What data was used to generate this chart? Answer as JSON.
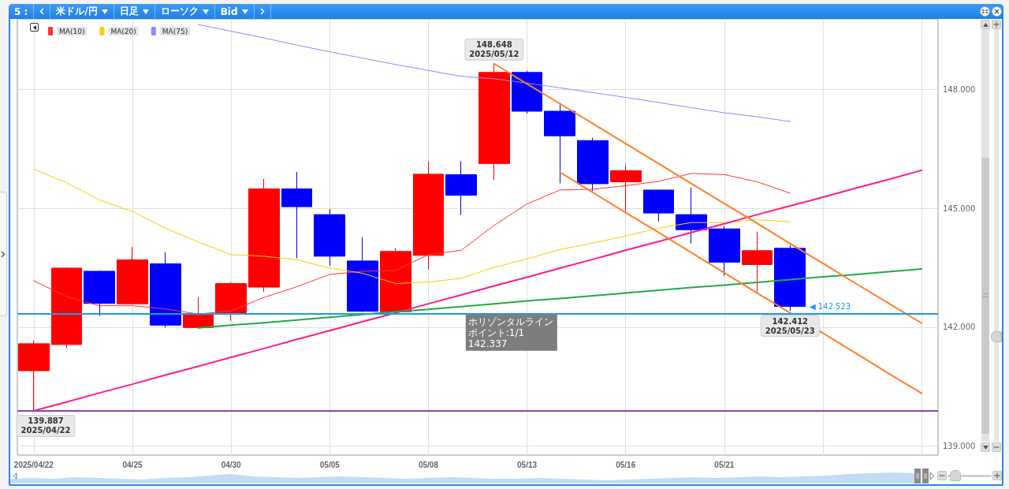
{
  "chart_data": {
    "type": "candlestick",
    "title": "米ドル/円",
    "annotations": [
      "5 :",
      "日足",
      "ローソク",
      "Bid",
      {
        "text": "148.648\n2025/05/12",
        "y": 148.648
      },
      {
        "text": "139.887\n2025/04/22",
        "y": 139.887
      },
      {
        "text": "142.412\n2025/05/23",
        "y": 142.412
      },
      "◀ 142.523"
    ],
    "categories": [
      "2025/04/22",
      null,
      null,
      "04/25",
      null,
      null,
      "04/30",
      null,
      null,
      "05/05",
      null,
      null,
      "05/08",
      null,
      null,
      "05/13",
      null,
      null,
      "05/16",
      null,
      null,
      "05/21",
      null,
      null,
      null,
      null,
      null,
      null
    ],
    "ohlc": [
      [
        140.9,
        141.66,
        139.887,
        141.58
      ],
      [
        141.56,
        143.51,
        141.47,
        143.49
      ],
      [
        143.41,
        143.42,
        142.28,
        142.6
      ],
      [
        142.59,
        144.02,
        142.57,
        143.7
      ],
      [
        143.6,
        143.89,
        141.99,
        142.05
      ],
      [
        141.99,
        142.76,
        141.97,
        142.32
      ],
      [
        142.33,
        143.14,
        142.16,
        143.1
      ],
      [
        143.01,
        145.74,
        142.89,
        145.49
      ],
      [
        145.49,
        145.92,
        143.74,
        145.04
      ],
      [
        144.84,
        144.98,
        143.55,
        143.79
      ],
      [
        143.67,
        144.27,
        142.38,
        142.4
      ],
      [
        142.39,
        144.0,
        142.37,
        143.91
      ],
      [
        143.81,
        146.19,
        143.45,
        145.86
      ],
      [
        145.85,
        146.19,
        144.83,
        145.33
      ],
      [
        146.13,
        148.648,
        145.72,
        148.43
      ],
      [
        148.43,
        148.47,
        147.39,
        147.45
      ],
      [
        147.45,
        147.66,
        145.63,
        146.83
      ],
      [
        146.71,
        146.78,
        145.44,
        145.62
      ],
      [
        145.67,
        146.1,
        144.93,
        145.95
      ],
      [
        145.46,
        145.47,
        144.67,
        144.88
      ],
      [
        144.84,
        145.52,
        144.11,
        144.46
      ],
      [
        144.48,
        144.55,
        143.3,
        143.64
      ],
      [
        143.58,
        144.41,
        142.86,
        143.93
      ],
      [
        143.99,
        144.07,
        142.412,
        142.523
      ],
      null,
      null,
      null,
      null
    ],
    "colors": [
      "#ff0000",
      "#ff0000",
      "#0000ff",
      "#ff0000",
      "#0000ff",
      "#ff0000",
      "#ff0000",
      "#ff0000",
      "#0000ff",
      "#0000ff",
      "#0000ff",
      "#ff0000",
      "#ff0000",
      "#0000ff",
      "#ff0000",
      "#0000ff",
      "#0000ff",
      "#0000ff",
      "#ff0000",
      "#0000ff",
      "#0000ff",
      "#0000ff",
      "#ff0000",
      "#0000ff",
      null,
      null,
      null,
      null
    ],
    "series": [
      {
        "name": "MA(10)",
        "type": "line",
        "color": "#ff3333",
        "values": [
          143.17,
          142.77,
          142.54,
          142.54,
          142.46,
          142.33,
          142.41,
          142.75,
          143.02,
          143.33,
          143.41,
          143.43,
          143.83,
          143.94,
          144.57,
          145.11,
          145.46,
          145.48,
          145.57,
          145.68,
          145.88,
          145.85,
          145.67,
          145.38,
          null,
          null,
          null,
          null
        ]
      },
      {
        "name": "MA(20)",
        "type": "line",
        "color": "#ffcc00",
        "values": [
          145.99,
          145.64,
          145.21,
          144.92,
          144.5,
          144.15,
          143.83,
          143.79,
          143.7,
          143.49,
          143.36,
          143.1,
          143.14,
          143.23,
          143.51,
          143.72,
          143.96,
          144.12,
          144.3,
          144.5,
          144.64,
          144.64,
          144.71,
          144.66,
          null,
          null,
          null,
          null
        ]
      },
      {
        "name": "MA(75)",
        "type": "line",
        "color": "#8c8cff",
        "values": [
          null,
          null,
          null,
          null,
          null,
          149.64,
          149.47,
          149.3,
          149.12,
          148.95,
          148.79,
          148.63,
          148.48,
          148.33,
          148.27,
          148.16,
          148.04,
          147.92,
          147.8,
          147.67,
          147.54,
          147.41,
          147.31,
          147.19,
          null,
          null,
          null,
          null
        ]
      },
      {
        "type": "line",
        "color": "#ff1a8c",
        "values": [
          139.89,
          140.11,
          140.34,
          140.56,
          140.79,
          141.01,
          141.24,
          141.46,
          141.69,
          141.91,
          142.14,
          142.36,
          142.59,
          142.81,
          143.04,
          143.26,
          143.49,
          143.71,
          143.94,
          144.16,
          144.39,
          144.61,
          144.84,
          145.06,
          145.28,
          145.51,
          145.73,
          145.96
        ]
      },
      {
        "type": "line",
        "color": "#22aa44",
        "values": [
          null,
          null,
          null,
          null,
          null,
          141.98,
          142.05,
          142.11,
          142.18,
          142.25,
          142.32,
          142.39,
          142.45,
          142.52,
          142.59,
          142.66,
          142.72,
          142.79,
          142.86,
          142.93,
          143.0,
          143.06,
          143.13,
          143.2,
          143.27,
          143.33,
          143.4,
          143.47
        ]
      },
      {
        "type": "line",
        "color": "#ff7f27",
        "values": [
          null,
          null,
          null,
          null,
          null,
          null,
          null,
          null,
          null,
          null,
          null,
          null,
          null,
          null,
          148.65,
          148.14,
          147.64,
          147.14,
          146.63,
          146.13,
          145.62,
          145.12,
          144.62,
          144.11,
          143.61,
          143.1,
          142.6,
          142.1
        ]
      },
      {
        "type": "line",
        "color": "#ff7f27",
        "values": [
          null,
          null,
          null,
          null,
          null,
          null,
          null,
          null,
          null,
          null,
          null,
          null,
          null,
          null,
          null,
          null,
          145.91,
          145.4,
          144.89,
          144.39,
          143.88,
          143.37,
          142.86,
          142.36,
          141.85,
          141.34,
          140.83,
          140.33
        ]
      }
    ],
    "ylim": [
      138.77,
      149.78
    ],
    "yticks": [
      {
        "value": 139,
        "label": "139.000"
      },
      {
        "value": 142,
        "label": "142.000"
      },
      {
        "value": 145,
        "label": "145.000"
      },
      {
        "value": 148,
        "label": "148.000"
      }
    ],
    "grid": true,
    "legend": "top left",
    "ref_lines": [
      {
        "axis": "y",
        "value": 142.337,
        "label": "ホリゾンタルラインポイント:1/1\n142.337",
        "color": "#1a9fe0"
      },
      {
        "axis": "y",
        "value": 139.887,
        "color": "#8e44ad"
      }
    ]
  }
}
